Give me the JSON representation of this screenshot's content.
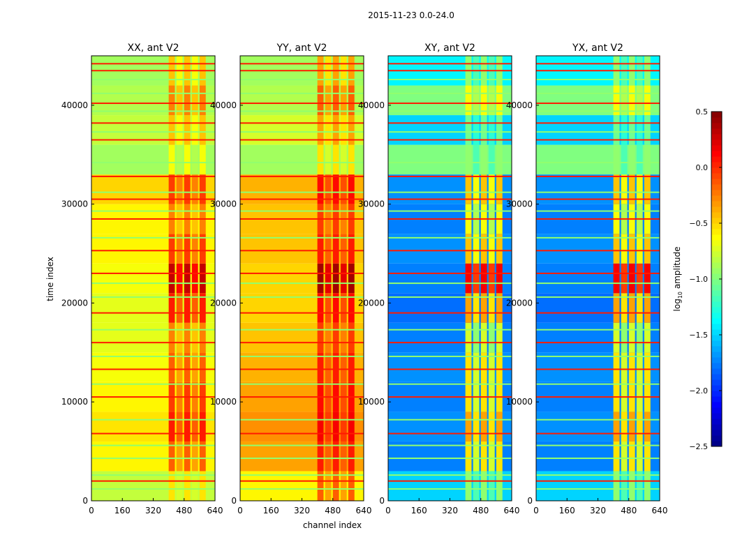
{
  "chart_data": {
    "type": "heatmap",
    "title": "2015-11-23 0.0-24.0",
    "xlabel": "channel index",
    "ylabel": "time index",
    "xlim": [
      0,
      640
    ],
    "ylim": [
      0,
      45000
    ],
    "xticks": [
      "0",
      "160",
      "320",
      "480",
      "640"
    ],
    "yticks": [
      "0",
      "10000",
      "20000",
      "30000",
      "40000"
    ],
    "time_bin_size": 3000,
    "rfi_channels": [
      400,
      600
    ],
    "colorbar": {
      "label_prefix": "log",
      "label_sub": "10",
      "label_suffix": " amplitude",
      "range": [
        -2.5,
        0.5
      ],
      "ticks": [
        "0.5",
        "0.0",
        "−0.5",
        "−1.0",
        "−1.5",
        "−2.0",
        "−2.5"
      ],
      "colormap": "jet"
    },
    "flag_lines_red": [
      2000,
      6800,
      10500,
      13300,
      16000,
      19000,
      23000,
      25300,
      28500,
      30500,
      32800,
      36500,
      38200,
      40200,
      43500,
      44200
    ],
    "flag_lines_green": [
      1200,
      2600,
      4300,
      5600,
      8200,
      11800,
      14600,
      17300,
      20600,
      22000,
      26600,
      29300,
      31200,
      34200,
      37300,
      39400,
      41200,
      42600
    ],
    "panels": [
      {
        "title": "XX, ant V2",
        "base": [
          -0.8,
          -0.6,
          -0.55,
          -0.6,
          -0.65,
          -0.7,
          -0.7,
          -0.65,
          -0.6,
          -0.6,
          -0.5,
          -0.9,
          -0.8,
          -0.85,
          -0.9
        ],
        "rfi": [
          -0.6,
          -0.2,
          0.0,
          -0.1,
          -0.2,
          -0.3,
          0.0,
          0.25,
          -0.1,
          -0.3,
          -0.1,
          -0.7,
          -0.5,
          -0.3,
          -0.5
        ]
      },
      {
        "title": "YY, ant V2",
        "base": [
          -0.6,
          -0.35,
          -0.3,
          -0.35,
          -0.4,
          -0.45,
          -0.5,
          -0.5,
          -0.45,
          -0.45,
          -0.4,
          -0.9,
          -0.75,
          -0.85,
          -0.9
        ],
        "rfi": [
          -0.2,
          0.0,
          0.1,
          0.05,
          0.0,
          -0.1,
          0.05,
          0.35,
          0.0,
          -0.1,
          0.05,
          -0.6,
          -0.4,
          -0.2,
          -0.4
        ]
      },
      {
        "title": "XY, ant V2",
        "base": [
          -1.5,
          -1.75,
          -1.7,
          -1.75,
          -1.7,
          -1.75,
          -1.8,
          -1.75,
          -1.7,
          -1.75,
          -1.7,
          -1.0,
          -1.5,
          -1.0,
          -1.4
        ],
        "rfi": [
          -1.0,
          -0.6,
          -0.4,
          -0.6,
          -0.6,
          -0.8,
          -0.4,
          0.1,
          -0.5,
          -0.7,
          -0.5,
          -1.0,
          -1.1,
          -0.7,
          -1.0
        ]
      },
      {
        "title": "YX, ant V2",
        "base": [
          -1.5,
          -1.75,
          -1.7,
          -1.75,
          -1.7,
          -1.75,
          -1.8,
          -1.75,
          -1.7,
          -1.75,
          -1.7,
          -1.0,
          -1.5,
          -1.0,
          -1.4
        ],
        "rfi": [
          -1.0,
          -0.6,
          -0.4,
          -0.6,
          -0.6,
          -0.8,
          -0.4,
          0.1,
          -0.5,
          -0.7,
          -0.5,
          -1.0,
          -1.1,
          -0.7,
          -1.0
        ]
      }
    ]
  }
}
